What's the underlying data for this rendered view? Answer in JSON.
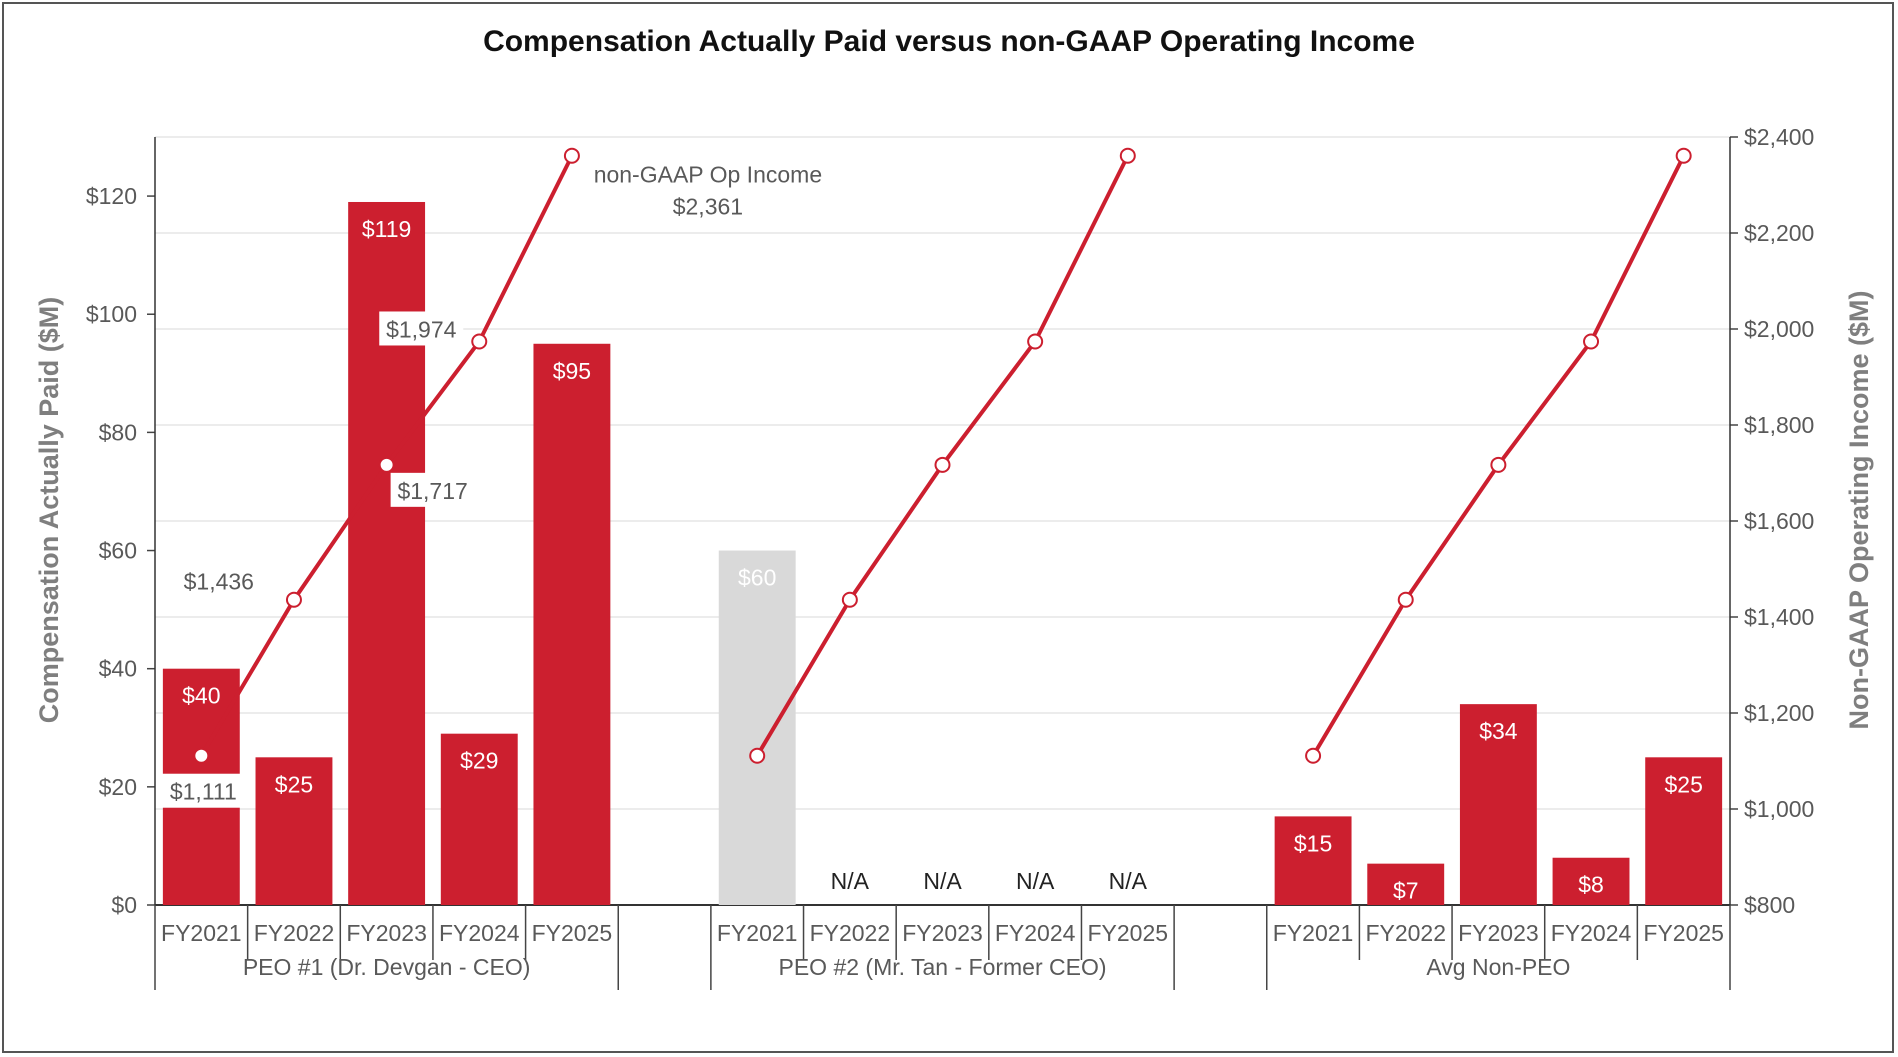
{
  "chart_data": {
    "type": "bar",
    "title": "Compensation Actually Paid versus non-GAAP Operating Income",
    "ylabel": "Compensation Actually Paid ($M)",
    "y2label": "Non-GAAP Operating Income ($M)",
    "ylim": [
      0,
      130
    ],
    "y2lim": [
      800,
      2400
    ],
    "yticks": [
      "$0",
      "$20",
      "$40",
      "$60",
      "$80",
      "$100",
      "$120"
    ],
    "y2ticks": [
      "$800",
      "$1,000",
      "$1,200",
      "$1,400",
      "$1,600",
      "$1,800",
      "$2,000",
      "$2,200",
      "$2,400"
    ],
    "colors": {
      "bar": "#cc1f2f",
      "bar_muted": "#d9d9d9",
      "line": "#cc1f2f",
      "grid": "#e6e6e6"
    },
    "groups": [
      {
        "name": "PEO #1 (Dr. Devgan - CEO)",
        "categories": [
          "FY2021",
          "FY2022",
          "FY2023",
          "FY2024",
          "FY2025"
        ],
        "values": [
          40,
          25,
          119,
          29,
          95
        ],
        "labels": [
          "$40",
          "$25",
          "$119",
          "$29",
          "$95"
        ],
        "muted": [
          false,
          false,
          false,
          false,
          false
        ],
        "line": [
          1111,
          1436,
          1717,
          1974,
          2361
        ]
      },
      {
        "name": "PEO #2 (Mr. Tan - Former CEO)",
        "categories": [
          "FY2021",
          "FY2022",
          "FY2023",
          "FY2024",
          "FY2025"
        ],
        "values": [
          60,
          null,
          null,
          null,
          null
        ],
        "labels": [
          "$60",
          "N/A",
          "N/A",
          "N/A",
          "N/A"
        ],
        "muted": [
          true,
          false,
          false,
          false,
          false
        ],
        "line": [
          1111,
          1436,
          1717,
          1974,
          2361
        ]
      },
      {
        "name": "Avg Non-PEO",
        "categories": [
          "FY2021",
          "FY2022",
          "FY2023",
          "FY2024",
          "FY2025"
        ],
        "values": [
          15,
          7,
          34,
          8,
          25
        ],
        "labels": [
          "$15",
          "$7",
          "$34",
          "$8",
          "$25"
        ],
        "muted": [
          false,
          false,
          false,
          false,
          false
        ],
        "line": [
          1111,
          1436,
          1717,
          1974,
          2361
        ]
      }
    ],
    "annotations": {
      "line_name": "non-GAAP Op Income",
      "line_last_value": "$2,361",
      "point_labels": [
        "$1,111",
        "$1,436",
        "$1,717",
        "$1,974"
      ]
    }
  }
}
